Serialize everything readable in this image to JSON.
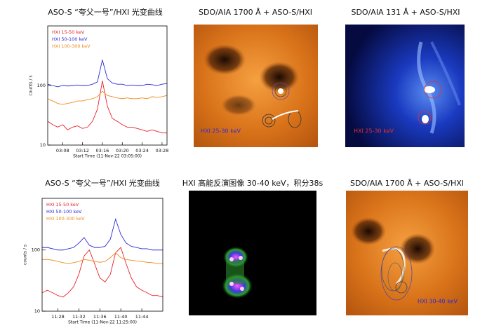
{
  "chart_data": [
    {
      "type": "line",
      "title": "ASO-S “夸父一号”/HXI 光变曲线",
      "xlabel": "Start Time (11-Nov-22 03:05:00)",
      "ylabel": "counts / s",
      "x": [
        0,
        1,
        2,
        3,
        4,
        5,
        6,
        7,
        8,
        9,
        10,
        11,
        12,
        13,
        14,
        15,
        16,
        17,
        18,
        19,
        20,
        21,
        22,
        23,
        24
      ],
      "xlim": [
        0,
        24
      ],
      "xticks": [
        {
          "value": 3,
          "label": "03:08"
        },
        {
          "value": 7,
          "label": "03:12"
        },
        {
          "value": 11,
          "label": "03:16"
        },
        {
          "value": 15,
          "label": "03:20"
        },
        {
          "value": 19,
          "label": "03:24"
        },
        {
          "value": 23,
          "label": "03:28"
        }
      ],
      "ylim": [
        10,
        1000
      ],
      "yticks": [
        10,
        100
      ],
      "log_y": true,
      "legend": "upper left",
      "series": [
        {
          "name": "HXI 15-50 keV",
          "color": "#e8202a",
          "values": [
            25,
            22,
            20,
            22,
            18,
            20,
            21,
            19,
            20,
            25,
            40,
            120,
            45,
            28,
            25,
            22,
            20,
            20,
            19,
            18,
            17,
            18,
            17,
            16,
            16
          ]
        },
        {
          "name": "HXI 50-100 keV",
          "color": "#2a2ad8",
          "values": [
            105,
            100,
            95,
            100,
            98,
            100,
            102,
            100,
            100,
            105,
            115,
            270,
            130,
            110,
            105,
            105,
            100,
            102,
            100,
            100,
            105,
            103,
            100,
            105,
            108
          ]
        },
        {
          "name": "HXI 100-300 keV",
          "color": "#f28a1e",
          "values": [
            60,
            55,
            50,
            48,
            50,
            52,
            55,
            55,
            58,
            60,
            65,
            80,
            68,
            65,
            62,
            60,
            62,
            60,
            60,
            62,
            60,
            65,
            63,
            65,
            68
          ]
        }
      ]
    },
    {
      "type": "line",
      "title": "ASO-S “夸父一号”/HXI 光变曲线",
      "xlabel": "Start Time (11-Nov-22 11:25:00)",
      "ylabel": "counts / s",
      "x": [
        0,
        1,
        2,
        3,
        4,
        5,
        6,
        7,
        8,
        9,
        10,
        11,
        12,
        13,
        14,
        15,
        16,
        17,
        18,
        19,
        20,
        21,
        22,
        23
      ],
      "xlim": [
        0,
        23
      ],
      "xticks": [
        {
          "value": 3,
          "label": "11:28"
        },
        {
          "value": 7,
          "label": "11:32"
        },
        {
          "value": 11,
          "label": "11:36"
        },
        {
          "value": 15,
          "label": "11:40"
        },
        {
          "value": 19,
          "label": "11:44"
        }
      ],
      "ylim": [
        10,
        700
      ],
      "yticks": [
        10,
        100
      ],
      "log_y": true,
      "legend": "upper left",
      "series": [
        {
          "name": "HXI 15-50 keV",
          "color": "#e8202a",
          "values": [
            20,
            22,
            20,
            18,
            17,
            20,
            25,
            40,
            80,
            100,
            60,
            35,
            30,
            40,
            90,
            110,
            60,
            35,
            25,
            22,
            20,
            18,
            18,
            17
          ]
        },
        {
          "name": "HXI 50-100 keV",
          "color": "#2a2ad8",
          "values": [
            110,
            110,
            105,
            100,
            100,
            105,
            110,
            130,
            160,
            120,
            110,
            110,
            115,
            150,
            320,
            180,
            130,
            115,
            110,
            105,
            105,
            100,
            100,
            100
          ]
        },
        {
          "name": "HXI 100-300 keV",
          "color": "#f28a1e",
          "values": [
            70,
            70,
            68,
            65,
            62,
            60,
            62,
            65,
            70,
            68,
            65,
            63,
            65,
            75,
            90,
            75,
            70,
            68,
            66,
            65,
            63,
            62,
            60,
            60
          ]
        }
      ]
    }
  ],
  "images": [
    {
      "title": "SDO/AIA 1700 Å + ASO-S/HXI",
      "label": "HXI 25-30 keV"
    },
    {
      "title": "SDO/AIA 131 Å + ASO-S/HXI",
      "label": "HXI 25-30 keV"
    },
    {
      "title": "HXI 高能反演图像 30-40 keV，积分38s"
    },
    {
      "title": "SDO/AIA 1700 Å + ASO-S/HXI",
      "label": "HXI 30-40 keV"
    }
  ]
}
